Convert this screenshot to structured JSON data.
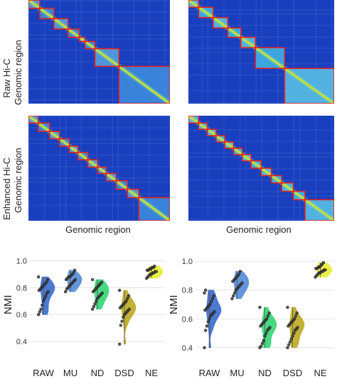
{
  "row_labels": {
    "raw": [
      "Raw Hi-C",
      "Genomic region"
    ],
    "enhanced": [
      "Enhanced Hi-C",
      "Genomic region"
    ]
  },
  "x_labels": [
    "Genomic region",
    "Genomic region"
  ],
  "colors": {
    "heat_bg": "#1a3fbe",
    "tad_border": "#e8201c",
    "RAW": "#2e62c9",
    "MU": "#4a84d6",
    "ND": "#27d36b",
    "DSD": "#b9a514",
    "NE": "#e8ea2a",
    "point": "#3a3a3a"
  },
  "heatmaps": [
    {
      "id": "raw-left",
      "tads": [
        [
          0,
          0.08
        ],
        [
          0.08,
          0.18
        ],
        [
          0.18,
          0.28
        ],
        [
          0.28,
          0.36
        ],
        [
          0.36,
          0.4
        ],
        [
          0.4,
          0.47
        ],
        [
          0.47,
          0.64
        ],
        [
          0.64,
          1.0
        ]
      ]
    },
    {
      "id": "raw-right",
      "tads": [
        [
          0,
          0.07
        ],
        [
          0.07,
          0.17
        ],
        [
          0.17,
          0.27
        ],
        [
          0.27,
          0.36
        ],
        [
          0.36,
          0.46
        ],
        [
          0.46,
          0.66
        ],
        [
          0.66,
          1.0
        ]
      ]
    },
    {
      "id": "enh-left",
      "tads": [
        [
          0,
          0.07
        ],
        [
          0.07,
          0.15
        ],
        [
          0.15,
          0.22
        ],
        [
          0.22,
          0.29
        ],
        [
          0.29,
          0.35
        ],
        [
          0.35,
          0.42
        ],
        [
          0.42,
          0.49
        ],
        [
          0.49,
          0.55
        ],
        [
          0.55,
          0.62
        ],
        [
          0.62,
          0.7
        ],
        [
          0.7,
          0.78
        ],
        [
          0.78,
          1.0
        ]
      ]
    },
    {
      "id": "enh-right",
      "tads": [
        [
          0,
          0.07
        ],
        [
          0.07,
          0.13
        ],
        [
          0.13,
          0.19
        ],
        [
          0.19,
          0.25
        ],
        [
          0.25,
          0.31
        ],
        [
          0.31,
          0.37
        ],
        [
          0.37,
          0.43
        ],
        [
          0.43,
          0.5
        ],
        [
          0.5,
          0.57
        ],
        [
          0.57,
          0.64
        ],
        [
          0.64,
          0.72
        ],
        [
          0.72,
          0.8
        ],
        [
          0.8,
          1.0
        ]
      ]
    }
  ],
  "chart_data": [
    {
      "type": "violin",
      "ylabel": "NMI",
      "ylim": [
        0.3,
        1.05
      ],
      "yticks": [
        "0.4",
        "0.6",
        "0.8",
        "1.0"
      ],
      "categories": [
        "RAW",
        "MU",
        "ND",
        "DSD",
        "NE"
      ],
      "series": [
        {
          "values": [
            0.88,
            0.86,
            0.84,
            0.83,
            0.82,
            0.81,
            0.8,
            0.79,
            0.78,
            0.77,
            0.76,
            0.74,
            0.72,
            0.7,
            0.67,
            0.64,
            0.62,
            0.6
          ]
        },
        {
          "values": [
            0.93,
            0.91,
            0.9,
            0.89,
            0.88,
            0.88,
            0.87,
            0.86,
            0.86,
            0.85,
            0.84,
            0.83,
            0.82,
            0.81,
            0.8,
            0.79,
            0.77
          ]
        },
        {
          "values": [
            0.86,
            0.84,
            0.83,
            0.82,
            0.81,
            0.8,
            0.79,
            0.78,
            0.77,
            0.76,
            0.75,
            0.74,
            0.73,
            0.72,
            0.7,
            0.68,
            0.66,
            0.64
          ]
        },
        {
          "values": [
            0.78,
            0.74,
            0.72,
            0.7,
            0.69,
            0.68,
            0.67,
            0.66,
            0.65,
            0.64,
            0.63,
            0.62,
            0.61,
            0.6,
            0.58,
            0.55,
            0.52,
            0.38
          ]
        },
        {
          "values": [
            0.96,
            0.95,
            0.95,
            0.94,
            0.94,
            0.93,
            0.93,
            0.92,
            0.92,
            0.91,
            0.91,
            0.9,
            0.9,
            0.89,
            0.88,
            0.87
          ]
        }
      ]
    },
    {
      "type": "violin",
      "ylabel": "NMI",
      "ylim": [
        0.35,
        1.05
      ],
      "yticks": [
        "0.4",
        "0.6",
        "0.8",
        "1.0"
      ],
      "categories": [
        "RAW",
        "MU",
        "ND",
        "DSD",
        "NE"
      ],
      "series": [
        {
          "values": [
            0.8,
            0.78,
            0.76,
            0.74,
            0.72,
            0.7,
            0.69,
            0.68,
            0.67,
            0.66,
            0.65,
            0.64,
            0.63,
            0.62,
            0.6,
            0.58,
            0.55,
            0.52,
            0.4
          ]
        },
        {
          "values": [
            0.93,
            0.91,
            0.9,
            0.89,
            0.88,
            0.87,
            0.86,
            0.85,
            0.84,
            0.83,
            0.82,
            0.81,
            0.8,
            0.78,
            0.76,
            0.74
          ]
        },
        {
          "values": [
            0.68,
            0.64,
            0.62,
            0.6,
            0.59,
            0.58,
            0.57,
            0.56,
            0.55,
            0.54,
            0.53,
            0.52,
            0.5,
            0.48,
            0.45,
            0.43,
            0.41,
            0.4
          ]
        },
        {
          "values": [
            0.68,
            0.64,
            0.62,
            0.6,
            0.59,
            0.58,
            0.57,
            0.56,
            0.55,
            0.54,
            0.53,
            0.52,
            0.5,
            0.48,
            0.46,
            0.44,
            0.42,
            0.4
          ]
        },
        {
          "values": [
            0.99,
            0.98,
            0.97,
            0.96,
            0.96,
            0.95,
            0.95,
            0.94,
            0.94,
            0.93,
            0.93,
            0.92,
            0.92,
            0.91,
            0.9,
            0.89
          ]
        }
      ]
    }
  ]
}
